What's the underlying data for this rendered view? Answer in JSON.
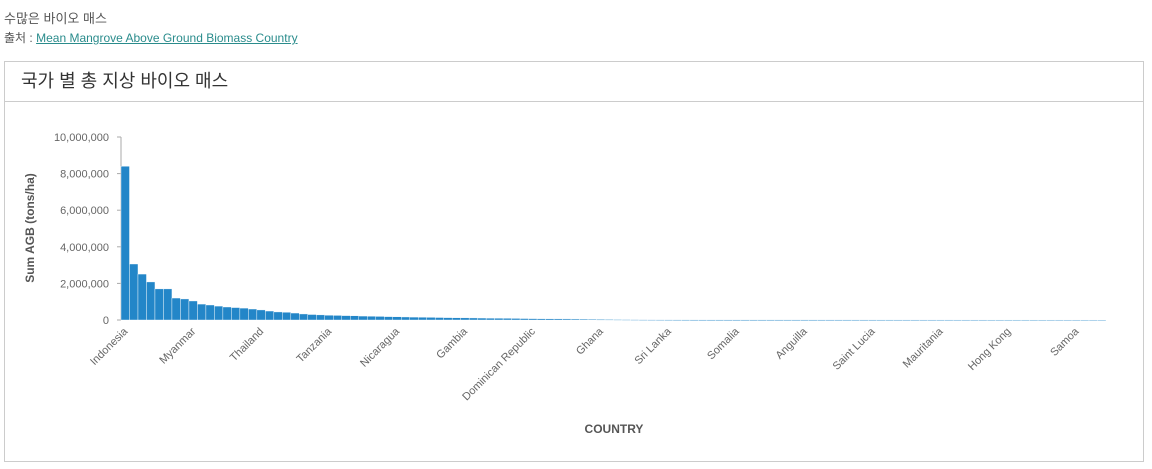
{
  "header": {
    "title": "수많은 바이오 매스",
    "source_label": "출처 :",
    "source_link": "Mean Mangrove Above Ground Biomass Country"
  },
  "chart_data": {
    "type": "bar",
    "title": "국가 별 총 지상 바이오 매스",
    "xlabel": "COUNTRY",
    "ylabel": "Sum AGB (tons/ha)",
    "color": "#2386c8",
    "ylim": [
      0,
      10000000
    ],
    "yticks": [
      0,
      {
        "value": 2000000,
        "label": "2,000,000"
      },
      {
        "value": 4000000,
        "label": "4,000,000"
      },
      {
        "value": 6000000,
        "label": "6,000,000"
      },
      {
        "value": 8000000,
        "label": "8,000,000"
      },
      {
        "value": 10000000,
        "label": "10,000,000"
      }
    ],
    "categories": [
      "Indonesia",
      null,
      null,
      null,
      null,
      null,
      null,
      null,
      "Myanmar",
      null,
      null,
      null,
      null,
      null,
      null,
      null,
      "Thailand",
      null,
      null,
      null,
      null,
      null,
      null,
      null,
      "Tanzania",
      null,
      null,
      null,
      null,
      null,
      null,
      null,
      "Nicaragua",
      null,
      null,
      null,
      null,
      null,
      null,
      null,
      "Gambia",
      null,
      null,
      null,
      null,
      null,
      null,
      null,
      "Dominican Republic",
      null,
      null,
      null,
      null,
      null,
      null,
      null,
      "Ghana",
      null,
      null,
      null,
      null,
      null,
      null,
      null,
      "Sri Lanka",
      null,
      null,
      null,
      null,
      null,
      null,
      null,
      "Somalia",
      null,
      null,
      null,
      null,
      null,
      null,
      null,
      "Anguilla",
      null,
      null,
      null,
      null,
      null,
      null,
      null,
      "Saint Lucia",
      null,
      null,
      null,
      null,
      null,
      null,
      null,
      "Mauritania",
      null,
      null,
      null,
      null,
      null,
      null,
      null,
      "Hong Kong",
      null,
      null,
      null,
      null,
      null,
      null,
      null,
      "Samoa",
      null,
      null,
      null
    ],
    "values": [
      8400000,
      3060000,
      2510000,
      2080000,
      1700000,
      1700000,
      1200000,
      1150000,
      1040000,
      870000,
      820000,
      760000,
      710000,
      680000,
      650000,
      600000,
      550000,
      490000,
      440000,
      420000,
      380000,
      330000,
      300000,
      280000,
      260000,
      250000,
      240000,
      230000,
      215000,
      205000,
      195000,
      185000,
      175000,
      165000,
      158000,
      150000,
      143000,
      136000,
      130000,
      124000,
      118000,
      112000,
      106000,
      100000,
      95000,
      90000,
      85000,
      80000,
      76000,
      72000,
      68000,
      64000,
      60000,
      56000,
      52000,
      48000,
      30000,
      27000,
      24000,
      22000,
      20000,
      18000,
      17000,
      16000,
      15000,
      14000,
      13000,
      12000,
      11500,
      11000,
      10500,
      10000,
      9500,
      9000,
      8500,
      8000,
      7500,
      7000,
      6500,
      6000,
      5800,
      5500,
      5200,
      5000,
      4700,
      4500,
      4200,
      4000,
      3800,
      3600,
      3400,
      3200,
      3000,
      2800,
      2600,
      2400,
      2200,
      2000,
      1800,
      1700,
      1600,
      1500,
      1400,
      1300,
      1200,
      1100,
      1000,
      900,
      800,
      700,
      600,
      500,
      400,
      300,
      200,
      100
    ]
  }
}
